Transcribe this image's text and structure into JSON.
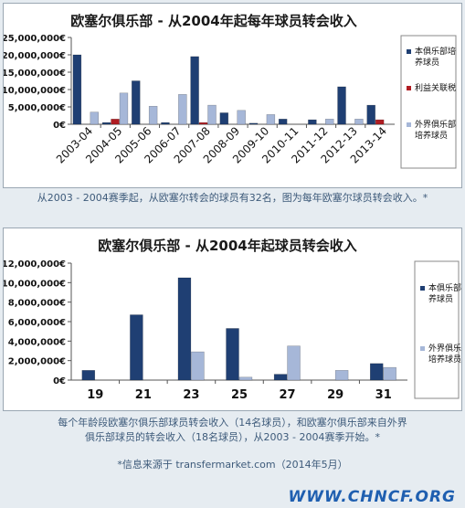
{
  "chart_data": [
    {
      "type": "bar",
      "title": "欧塞尔俱乐部 - 从2004年起每年球员转会收入",
      "xlabel": "",
      "ylabel": "",
      "ylim": [
        0,
        25000000
      ],
      "y_ticks": [
        "25,000,000€",
        "20,000,000€",
        "15,000,000€",
        "10,000,000€",
        "5,000,000€",
        "0€"
      ],
      "categories": [
        "2003-04",
        "2004-05",
        "2005-06",
        "2006-07",
        "2007-08",
        "2008-09",
        "2009-10",
        "2010-11",
        "2011-12",
        "2012-13",
        "2013-14"
      ],
      "series": [
        {
          "name": "本俱乐部培养球员",
          "color": "#1f3f73",
          "values": [
            20000000,
            500000,
            12500000,
            500000,
            19500000,
            3300000,
            300000,
            1500000,
            1300000,
            10800000,
            5500000
          ]
        },
        {
          "name": "利益关联税",
          "color": "#b01c22",
          "values": [
            0,
            1500000,
            0,
            0,
            500000,
            0,
            0,
            0,
            0,
            0,
            1300000
          ]
        },
        {
          "name": "外界俱乐部培养球员",
          "color": "#a6b7d8",
          "values": [
            3500000,
            9000000,
            5200000,
            8600000,
            5500000,
            4000000,
            2800000,
            0,
            1500000,
            1500000,
            0
          ]
        }
      ],
      "grid": false,
      "legend": "right"
    },
    {
      "type": "bar",
      "title": "欧塞尔俱乐部 - 从2004年起球员转会收入",
      "xlabel": "",
      "ylabel": "",
      "ylim": [
        0,
        12000000
      ],
      "y_ticks": [
        "12,000,000€",
        "10,000,000€",
        "8,000,000€",
        "6,000,000€",
        "4,000,000€",
        "2,000,000€",
        "0€"
      ],
      "categories": [
        "19",
        "21",
        "23",
        "25",
        "27",
        "29",
        "31"
      ],
      "series": [
        {
          "name": "本俱乐部培养球员",
          "color": "#1f3f73",
          "values": [
            1000000,
            6700000,
            10500000,
            5300000,
            600000,
            0,
            1700000
          ]
        },
        {
          "name": "外界俱乐部培养球员",
          "color": "#a6b7d8",
          "values": [
            0,
            0,
            2900000,
            300000,
            3500000,
            1000000,
            1300000
          ]
        }
      ],
      "grid": false,
      "legend": "right"
    }
  ],
  "captions": {
    "chart1": "从2003 - 2004赛季起，从欧塞尔转会的球员有32名，图为每年欧塞尔球员转会收入。*",
    "chart2_line1": "每个年龄段欧塞尔俱乐部球员转会收入（14名球员），和欧塞尔俱乐部来自外界",
    "chart2_line2": "俱乐部球员的转会收入（18名球员），从2003 - 2004赛季开始。*",
    "source": "*信息来源于 transfermarket.com（2014年5月）"
  },
  "watermark": "WWW.CHNCF.ORG"
}
